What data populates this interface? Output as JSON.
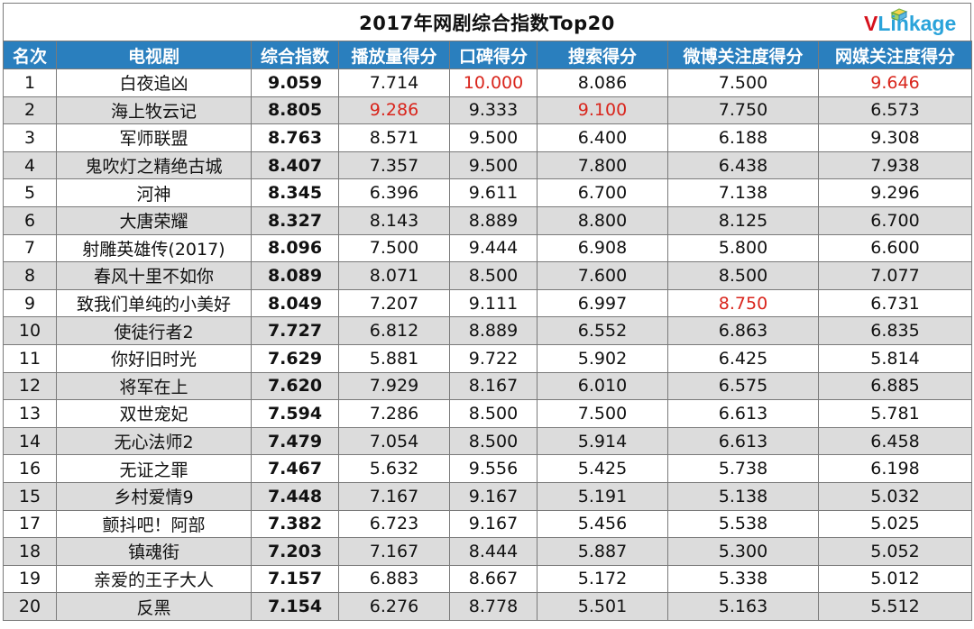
{
  "title": "2017年网剧综合指数Top20",
  "logo": {
    "letter": "V",
    "rest": "Linkage",
    "accent": "#d6111c",
    "brand": "#2aa3da"
  },
  "header_color": "#2a7fbe",
  "highlight_color": "#d9251c",
  "columns": [
    "名次",
    "电视剧",
    "综合指数",
    "播放量得分",
    "口碑得分",
    "搜索得分",
    "微博关注度得分",
    "网媒关注度得分"
  ],
  "rows": [
    {
      "rank": "1",
      "name": "白夜追凶",
      "total": "9.059",
      "play": "7.714",
      "rep": "10.000",
      "search": "8.086",
      "weibo": "7.500",
      "media": "9.646",
      "red": [
        "rep",
        "media"
      ]
    },
    {
      "rank": "2",
      "name": "海上牧云记",
      "total": "8.805",
      "play": "9.286",
      "rep": "9.333",
      "search": "9.100",
      "weibo": "7.750",
      "media": "6.573",
      "red": [
        "play",
        "search"
      ]
    },
    {
      "rank": "3",
      "name": "军师联盟",
      "total": "8.763",
      "play": "8.571",
      "rep": "9.500",
      "search": "6.400",
      "weibo": "6.188",
      "media": "9.308",
      "red": []
    },
    {
      "rank": "4",
      "name": "鬼吹灯之精绝古城",
      "total": "8.407",
      "play": "7.357",
      "rep": "9.500",
      "search": "7.800",
      "weibo": "6.438",
      "media": "7.938",
      "red": []
    },
    {
      "rank": "5",
      "name": "河神",
      "total": "8.345",
      "play": "6.396",
      "rep": "9.611",
      "search": "6.700",
      "weibo": "7.138",
      "media": "9.296",
      "red": []
    },
    {
      "rank": "6",
      "name": "大唐荣耀",
      "total": "8.327",
      "play": "8.143",
      "rep": "8.889",
      "search": "8.800",
      "weibo": "8.125",
      "media": "6.700",
      "red": []
    },
    {
      "rank": "7",
      "name": "射雕英雄传(2017)",
      "total": "8.096",
      "play": "7.500",
      "rep": "9.444",
      "search": "6.908",
      "weibo": "5.800",
      "media": "6.600",
      "red": []
    },
    {
      "rank": "8",
      "name": "春风十里不如你",
      "total": "8.089",
      "play": "8.071",
      "rep": "8.500",
      "search": "7.600",
      "weibo": "8.500",
      "media": "7.077",
      "red": []
    },
    {
      "rank": "9",
      "name": "致我们单纯的小美好",
      "total": "8.049",
      "play": "7.207",
      "rep": "9.111",
      "search": "6.997",
      "weibo": "8.750",
      "media": "6.731",
      "red": [
        "weibo"
      ]
    },
    {
      "rank": "10",
      "name": "使徒行者2",
      "total": "7.727",
      "play": "6.812",
      "rep": "8.889",
      "search": "6.552",
      "weibo": "6.863",
      "media": "6.835",
      "red": []
    },
    {
      "rank": "11",
      "name": "你好旧时光",
      "total": "7.629",
      "play": "5.881",
      "rep": "9.722",
      "search": "5.902",
      "weibo": "6.425",
      "media": "5.814",
      "red": []
    },
    {
      "rank": "12",
      "name": "将军在上",
      "total": "7.620",
      "play": "7.929",
      "rep": "8.167",
      "search": "6.010",
      "weibo": "6.575",
      "media": "6.885",
      "red": []
    },
    {
      "rank": "13",
      "name": "双世宠妃",
      "total": "7.594",
      "play": "7.286",
      "rep": "8.500",
      "search": "7.500",
      "weibo": "6.613",
      "media": "5.781",
      "red": []
    },
    {
      "rank": "14",
      "name": "无心法师2",
      "total": "7.479",
      "play": "7.054",
      "rep": "8.500",
      "search": "5.914",
      "weibo": "6.613",
      "media": "6.458",
      "red": []
    },
    {
      "rank": "16",
      "name": "无证之罪",
      "total": "7.467",
      "play": "5.632",
      "rep": "9.556",
      "search": "5.425",
      "weibo": "5.738",
      "media": "6.198",
      "red": []
    },
    {
      "rank": "15",
      "name": "乡村爱情9",
      "total": "7.448",
      "play": "7.167",
      "rep": "9.167",
      "search": "5.191",
      "weibo": "5.138",
      "media": "5.032",
      "red": []
    },
    {
      "rank": "17",
      "name": "颤抖吧！阿部",
      "total": "7.382",
      "play": "6.723",
      "rep": "9.167",
      "search": "5.456",
      "weibo": "5.538",
      "media": "5.025",
      "red": []
    },
    {
      "rank": "18",
      "name": "镇魂街",
      "total": "7.203",
      "play": "7.167",
      "rep": "8.444",
      "search": "5.887",
      "weibo": "5.300",
      "media": "5.052",
      "red": []
    },
    {
      "rank": "19",
      "name": "亲爱的王子大人",
      "total": "7.157",
      "play": "6.883",
      "rep": "8.667",
      "search": "5.172",
      "weibo": "5.338",
      "media": "5.012",
      "red": []
    },
    {
      "rank": "20",
      "name": "反黑",
      "total": "7.154",
      "play": "6.276",
      "rep": "8.778",
      "search": "5.501",
      "weibo": "5.163",
      "media": "5.512",
      "red": []
    }
  ]
}
